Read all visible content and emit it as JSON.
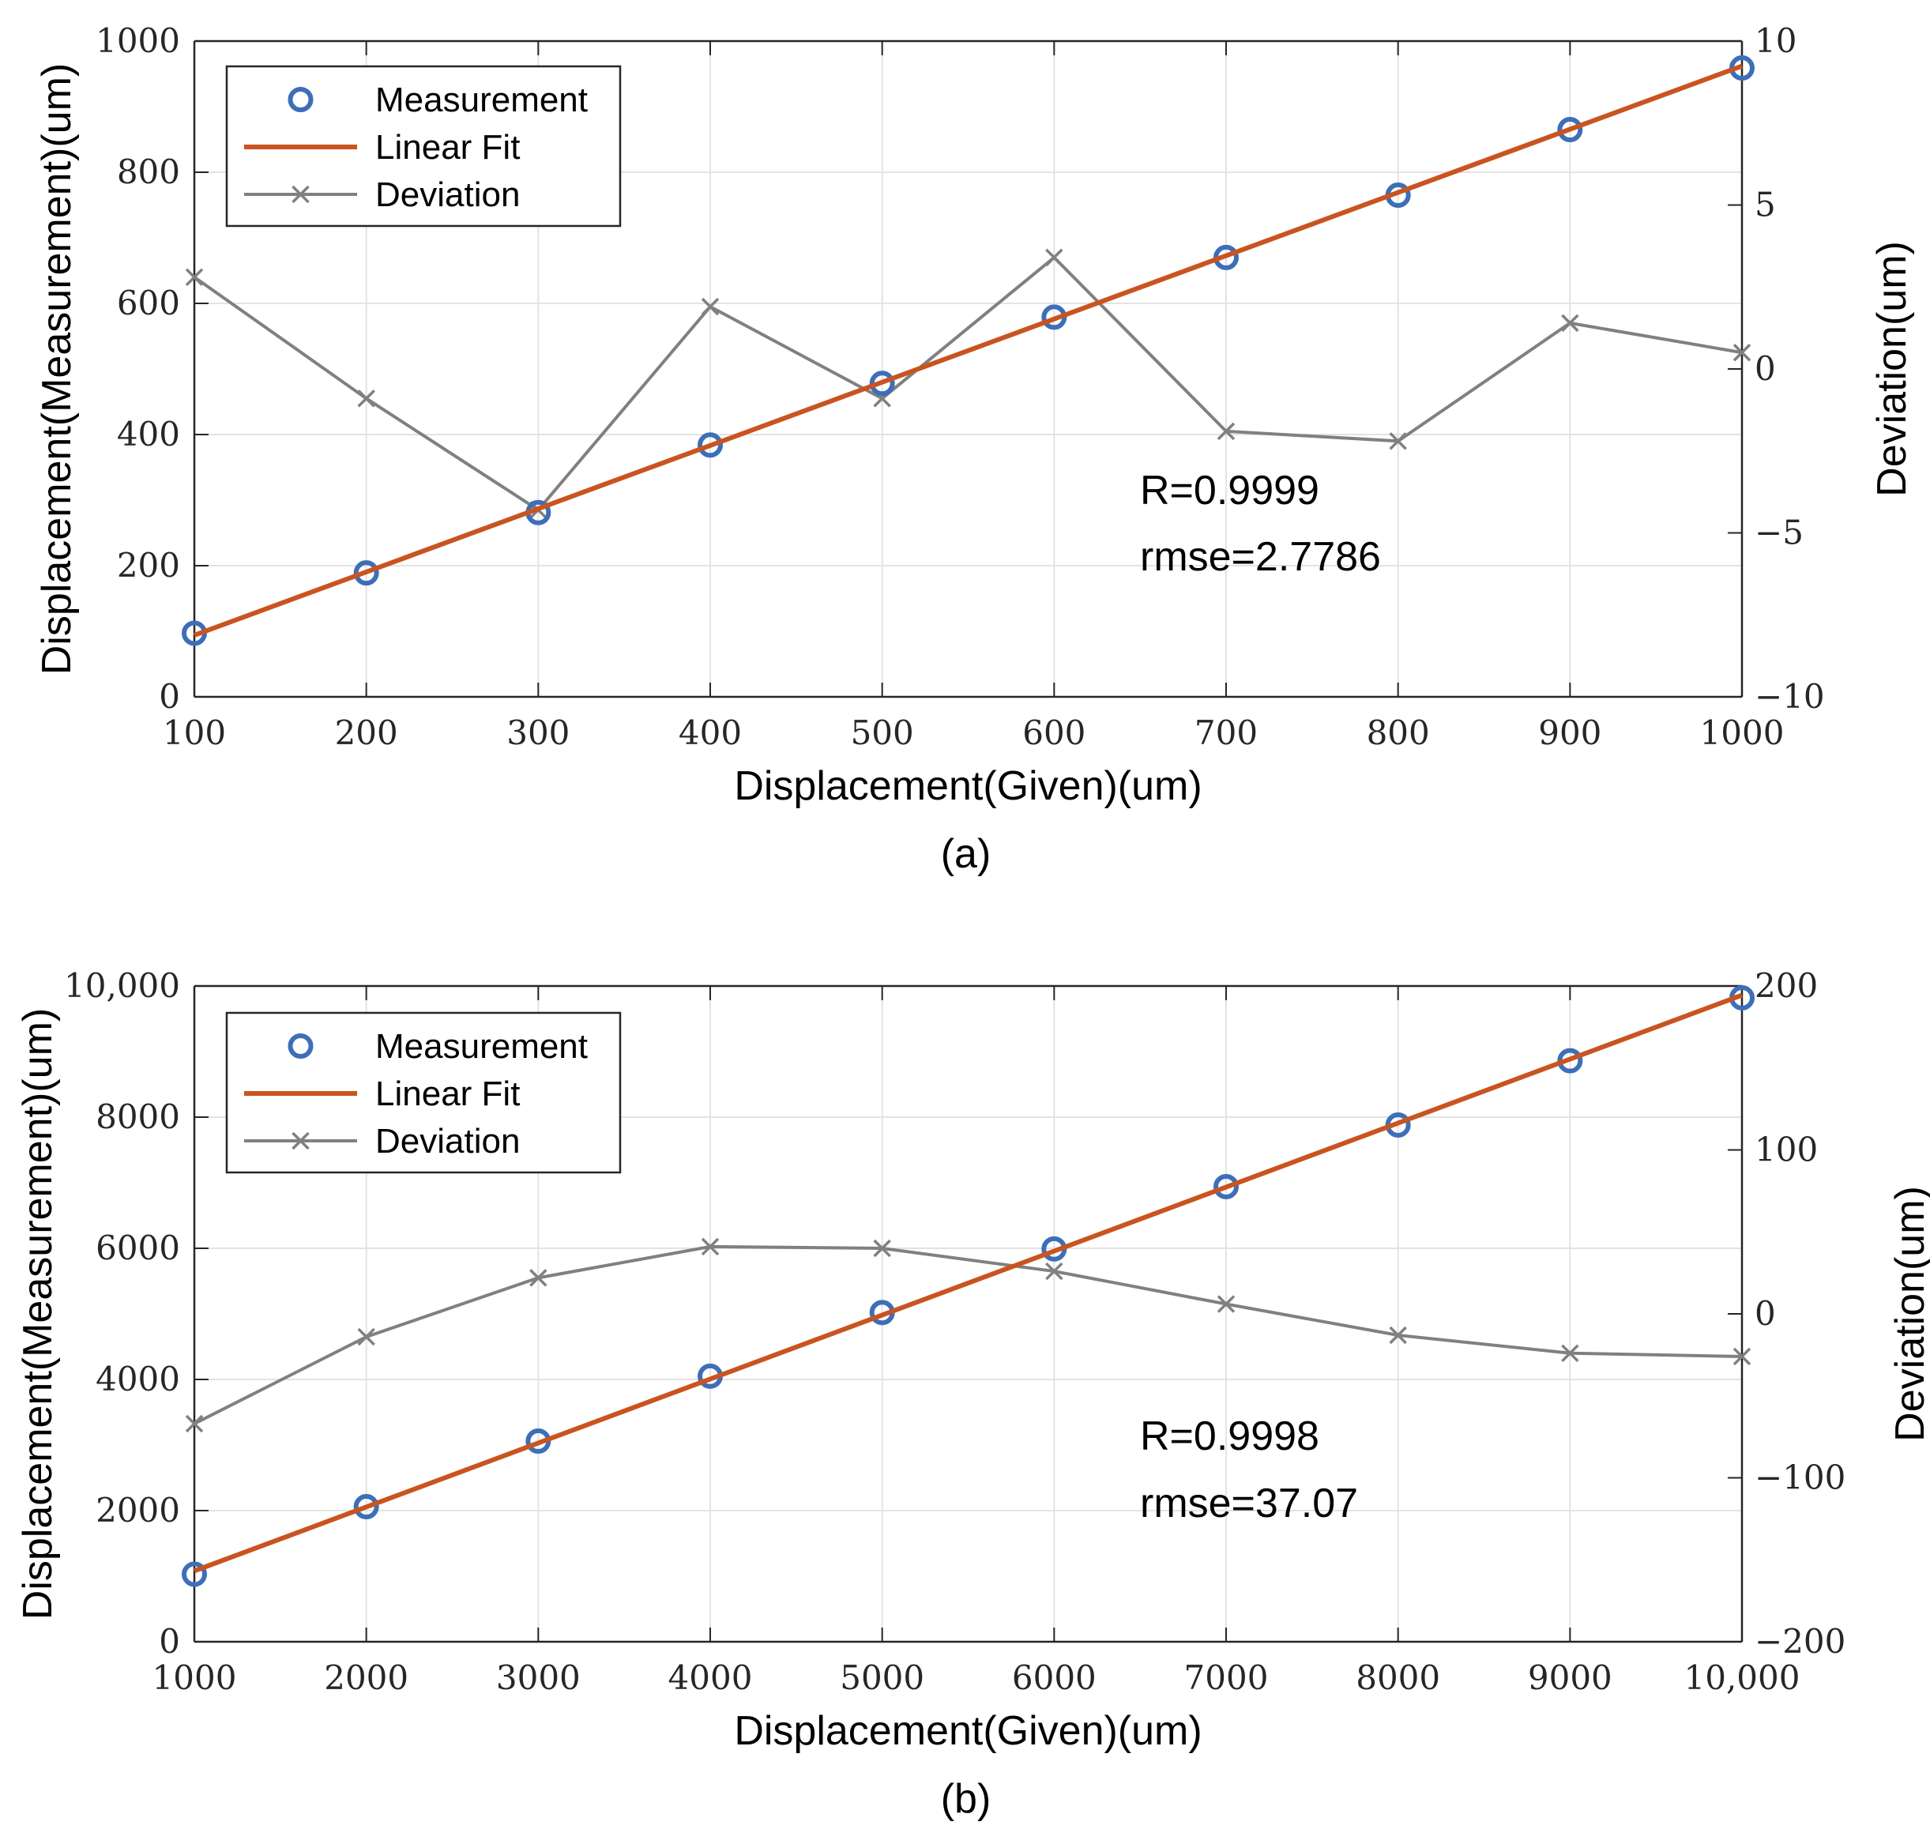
{
  "colors": {
    "measurement": "#3d6fb8",
    "fit": "#c9541f",
    "deviation": "#808080",
    "grid": "#e3e3e3",
    "axis": "#262626"
  },
  "chart_data": [
    {
      "type": "line",
      "panel_label": "(a)",
      "xlabel": "Displacement(Given)(um)",
      "ylabel": "Displacement(Measurement)(um)",
      "y2label": "Deviation(um)",
      "xlim": [
        100,
        1000
      ],
      "ylim": [
        0,
        1000
      ],
      "y2lim": [
        -10,
        10
      ],
      "xticks": [
        100,
        200,
        300,
        400,
        500,
        600,
        700,
        800,
        900,
        1000
      ],
      "xtick_labels": [
        "100",
        "200",
        "300",
        "400",
        "500",
        "600",
        "700",
        "800",
        "900",
        "1000"
      ],
      "yticks": [
        0,
        200,
        400,
        600,
        800,
        1000
      ],
      "ytick_labels": [
        "0",
        "200",
        "400",
        "600",
        "800",
        "1000"
      ],
      "y2ticks": [
        -10,
        -5,
        0,
        5,
        10
      ],
      "y2tick_labels": [
        "−10",
        "−5",
        "0",
        "5",
        "10"
      ],
      "grid": true,
      "legend_position": "top-left",
      "legend": [
        "Measurement",
        "Linear Fit",
        "Deviation"
      ],
      "x": [
        100,
        200,
        300,
        400,
        500,
        600,
        700,
        800,
        900,
        1000
      ],
      "series": [
        {
          "name": "Measurement",
          "axis": "left",
          "style": "marker",
          "values": [
            97,
            189,
            281,
            384,
            478,
            579,
            670,
            765,
            865,
            959
          ]
        },
        {
          "name": "Linear Fit",
          "axis": "left",
          "style": "line",
          "x": [
            100,
            1000
          ],
          "values": [
            94,
            962
          ]
        },
        {
          "name": "Deviation",
          "axis": "right",
          "style": "line-x",
          "values": [
            2.8,
            -0.9,
            -4.3,
            1.9,
            -0.9,
            3.4,
            -1.9,
            -2.2,
            1.4,
            0.5
          ]
        }
      ],
      "annotations": [
        "R=0.9999",
        "rmse=2.7786"
      ]
    },
    {
      "type": "line",
      "panel_label": "(b)",
      "xlabel": "Displacement(Given)(um)",
      "ylabel": "Displacement(Measurement)(um)",
      "y2label": "Deviation(um)",
      "xlim": [
        1000,
        10000
      ],
      "ylim": [
        0,
        10000
      ],
      "y2lim": [
        -200,
        200
      ],
      "xticks": [
        1000,
        2000,
        3000,
        4000,
        5000,
        6000,
        7000,
        8000,
        9000,
        10000
      ],
      "xtick_labels": [
        "1000",
        "2000",
        "3000",
        "4000",
        "5000",
        "6000",
        "7000",
        "8000",
        "9000",
        "10,000"
      ],
      "yticks": [
        0,
        2000,
        4000,
        6000,
        8000,
        10000
      ],
      "ytick_labels": [
        "0",
        "2000",
        "4000",
        "6000",
        "8000",
        "10,000"
      ],
      "y2ticks": [
        -200,
        -100,
        0,
        100,
        200
      ],
      "y2tick_labels": [
        "−200",
        "−100",
        "0",
        "100",
        "200"
      ],
      "grid": true,
      "legend_position": "top-left",
      "legend": [
        "Measurement",
        "Linear Fit",
        "Deviation"
      ],
      "x": [
        1000,
        2000,
        3000,
        4000,
        5000,
        6000,
        7000,
        8000,
        9000,
        10000
      ],
      "series": [
        {
          "name": "Measurement",
          "axis": "left",
          "style": "marker",
          "values": [
            1030,
            2060,
            3060,
            4050,
            5020,
            5990,
            6940,
            7880,
            8860,
            9820
          ]
        },
        {
          "name": "Linear Fit",
          "axis": "left",
          "style": "line",
          "x": [
            1000,
            10000
          ],
          "values": [
            1080,
            9860
          ]
        },
        {
          "name": "Deviation",
          "axis": "right",
          "style": "line-x",
          "values": [
            -67,
            -14,
            22,
            41,
            40,
            26,
            6,
            -13,
            -24,
            -26
          ]
        }
      ],
      "annotations": [
        "R=0.9998",
        "rmse=37.07"
      ]
    }
  ]
}
